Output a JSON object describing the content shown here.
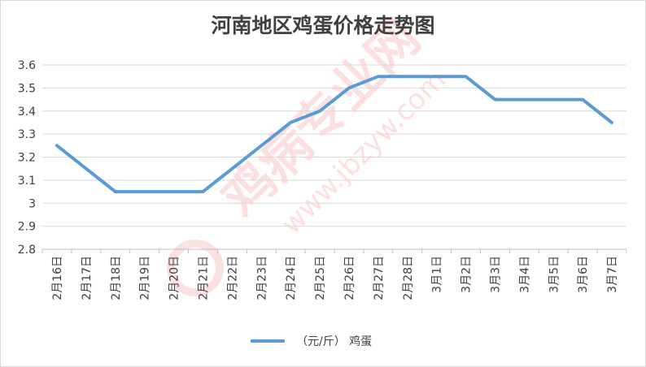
{
  "chart_data": {
    "type": "line",
    "title": "河南地区鸡蛋价格走势图",
    "xlabel": "",
    "ylabel": "",
    "categories": [
      "2月16日",
      "2月17日",
      "2月18日",
      "2月19日",
      "2月20日",
      "2月21日",
      "2月22日",
      "2月23日",
      "2月24日",
      "2月25日",
      "2月26日",
      "2月27日",
      "2月28日",
      "3月1日",
      "3月2日",
      "3月3日",
      "3月4日",
      "3月5日",
      "3月6日",
      "3月7日"
    ],
    "series": [
      {
        "name": "（元/斤） 鸡蛋",
        "values": [
          3.25,
          3.15,
          3.05,
          3.05,
          3.05,
          3.05,
          3.15,
          3.25,
          3.35,
          3.4,
          3.5,
          3.55,
          3.55,
          3.55,
          3.55,
          3.45,
          3.45,
          3.45,
          3.45,
          3.35
        ],
        "color": "#5b9bd5"
      }
    ],
    "ylim": [
      2.8,
      3.6
    ],
    "yticks": [
      "2.8",
      "2.9",
      "3",
      "3.1",
      "3.2",
      "3.3",
      "3.4",
      "3.5",
      "3.6"
    ],
    "grid": true,
    "legend": "bottom-center"
  },
  "watermark": {
    "text_main": "鸡病专业网",
    "text_url": "www.jbzyw.com",
    "color": "#e8453c"
  }
}
